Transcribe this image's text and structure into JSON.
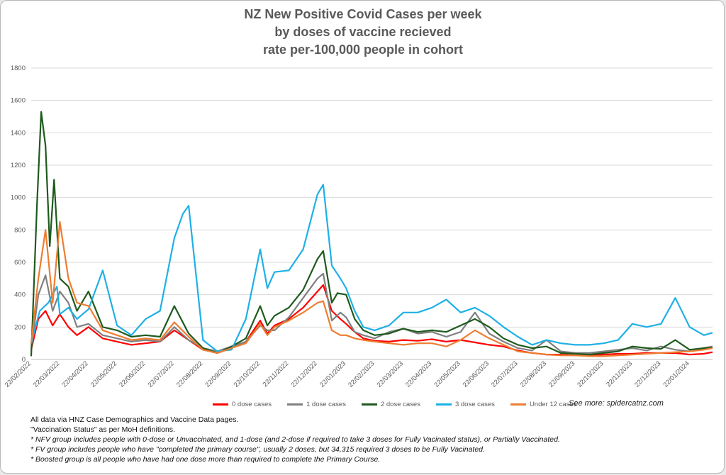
{
  "chart_data": {
    "type": "line",
    "title": [
      "NZ New Positive Covid Cases per week",
      "by doses of vaccine recieved",
      "rate per-100,000 people in cohort"
    ],
    "ylim": [
      0,
      1800
    ],
    "yticks": [
      "0",
      "200",
      "400",
      "600",
      "800",
      "1000",
      "1200",
      "1400",
      "1600",
      "1800"
    ],
    "x_tick_labels": [
      "22/02/2022",
      "22/03/2022",
      "22/04/2022",
      "22/05/2022",
      "22/06/2022",
      "22/07/2022",
      "22/08/2022",
      "22/09/2022",
      "22/10/2022",
      "22/11/2022",
      "22/12/2022",
      "22/01/2023",
      "22/02/2023",
      "22/03/2023",
      "22/04/2023",
      "22/05/2023",
      "22/06/2023",
      "22/07/2023",
      "22/08/2023",
      "22/09/2023",
      "22/10/2023",
      "22/11/2023",
      "22/12/2023",
      "22/01/2024"
    ],
    "x_range_months": [
      0,
      23.8
    ],
    "grid": true,
    "legend_position": "bottom",
    "series": [
      {
        "name": "0 dose cases",
        "color": "#ff0000",
        "points": [
          [
            0,
            60
          ],
          [
            0.25,
            250
          ],
          [
            0.5,
            300
          ],
          [
            0.75,
            210
          ],
          [
            1,
            280
          ],
          [
            1.3,
            200
          ],
          [
            1.6,
            150
          ],
          [
            2,
            200
          ],
          [
            2.5,
            130
          ],
          [
            3,
            110
          ],
          [
            3.5,
            90
          ],
          [
            4,
            100
          ],
          [
            4.5,
            110
          ],
          [
            5,
            180
          ],
          [
            5.5,
            120
          ],
          [
            6,
            60
          ],
          [
            6.5,
            40
          ],
          [
            7,
            70
          ],
          [
            7.5,
            110
          ],
          [
            8,
            240
          ],
          [
            8.25,
            160
          ],
          [
            8.5,
            210
          ],
          [
            9,
            250
          ],
          [
            9.5,
            320
          ],
          [
            10,
            420
          ],
          [
            10.2,
            460
          ],
          [
            10.5,
            300
          ],
          [
            10.8,
            250
          ],
          [
            11,
            220
          ],
          [
            11.3,
            170
          ],
          [
            11.6,
            130
          ],
          [
            12,
            115
          ],
          [
            12.5,
            110
          ],
          [
            13,
            120
          ],
          [
            13.5,
            115
          ],
          [
            14,
            125
          ],
          [
            14.5,
            110
          ],
          [
            15,
            120
          ],
          [
            15.5,
            105
          ],
          [
            16,
            90
          ],
          [
            16.5,
            80
          ],
          [
            17,
            55
          ],
          [
            17.5,
            40
          ],
          [
            18,
            30
          ],
          [
            18.5,
            30
          ],
          [
            19,
            25
          ],
          [
            19.5,
            25
          ],
          [
            20,
            30
          ],
          [
            20.5,
            35
          ],
          [
            21,
            35
          ],
          [
            21.5,
            40
          ],
          [
            22,
            40
          ],
          [
            22.5,
            40
          ],
          [
            23,
            30
          ],
          [
            23.5,
            35
          ],
          [
            23.8,
            45
          ]
        ]
      },
      {
        "name": "1 dose cases",
        "color": "#808080",
        "points": [
          [
            0,
            60
          ],
          [
            0.25,
            400
          ],
          [
            0.5,
            520
          ],
          [
            0.75,
            300
          ],
          [
            1,
            420
          ],
          [
            1.3,
            350
          ],
          [
            1.6,
            200
          ],
          [
            2,
            220
          ],
          [
            2.5,
            150
          ],
          [
            3,
            130
          ],
          [
            3.5,
            110
          ],
          [
            4,
            120
          ],
          [
            4.5,
            110
          ],
          [
            5,
            200
          ],
          [
            5.5,
            120
          ],
          [
            6,
            70
          ],
          [
            6.5,
            50
          ],
          [
            7,
            80
          ],
          [
            7.5,
            110
          ],
          [
            8,
            210
          ],
          [
            8.25,
            180
          ],
          [
            8.5,
            180
          ],
          [
            9,
            260
          ],
          [
            9.5,
            380
          ],
          [
            10,
            500
          ],
          [
            10.2,
            530
          ],
          [
            10.5,
            240
          ],
          [
            10.8,
            290
          ],
          [
            11,
            260
          ],
          [
            11.3,
            170
          ],
          [
            11.6,
            150
          ],
          [
            12,
            130
          ],
          [
            12.5,
            170
          ],
          [
            13,
            190
          ],
          [
            13.5,
            160
          ],
          [
            14,
            170
          ],
          [
            14.5,
            140
          ],
          [
            15,
            170
          ],
          [
            15.5,
            290
          ],
          [
            16,
            160
          ],
          [
            16.5,
            110
          ],
          [
            17,
            70
          ],
          [
            17.5,
            55
          ],
          [
            18,
            120
          ],
          [
            18.5,
            50
          ],
          [
            19,
            40
          ],
          [
            19.5,
            40
          ],
          [
            20,
            50
          ],
          [
            20.5,
            60
          ],
          [
            21,
            70
          ],
          [
            21.5,
            55
          ],
          [
            22,
            80
          ],
          [
            22.5,
            60
          ],
          [
            23,
            50
          ],
          [
            23.5,
            70
          ],
          [
            23.8,
            80
          ]
        ]
      },
      {
        "name": "2 dose cases",
        "color": "#1e5a1e",
        "points": [
          [
            0,
            20
          ],
          [
            0.2,
            950
          ],
          [
            0.35,
            1530
          ],
          [
            0.5,
            1320
          ],
          [
            0.65,
            700
          ],
          [
            0.8,
            1110
          ],
          [
            1,
            500
          ],
          [
            1.3,
            450
          ],
          [
            1.6,
            300
          ],
          [
            2,
            420
          ],
          [
            2.5,
            200
          ],
          [
            3,
            180
          ],
          [
            3.5,
            140
          ],
          [
            4,
            150
          ],
          [
            4.5,
            140
          ],
          [
            5,
            330
          ],
          [
            5.5,
            160
          ],
          [
            6,
            70
          ],
          [
            6.5,
            40
          ],
          [
            7,
            80
          ],
          [
            7.5,
            130
          ],
          [
            8,
            330
          ],
          [
            8.25,
            210
          ],
          [
            8.5,
            270
          ],
          [
            9,
            320
          ],
          [
            9.5,
            430
          ],
          [
            10,
            620
          ],
          [
            10.2,
            670
          ],
          [
            10.5,
            350
          ],
          [
            10.7,
            410
          ],
          [
            11,
            400
          ],
          [
            11.3,
            250
          ],
          [
            11.6,
            180
          ],
          [
            12,
            150
          ],
          [
            12.5,
            160
          ],
          [
            13,
            190
          ],
          [
            13.5,
            170
          ],
          [
            14,
            180
          ],
          [
            14.5,
            170
          ],
          [
            15,
            210
          ],
          [
            15.5,
            250
          ],
          [
            16,
            200
          ],
          [
            16.5,
            130
          ],
          [
            17,
            90
          ],
          [
            17.5,
            70
          ],
          [
            18,
            80
          ],
          [
            18.5,
            40
          ],
          [
            19,
            35
          ],
          [
            19.5,
            30
          ],
          [
            20,
            40
          ],
          [
            20.5,
            50
          ],
          [
            21,
            80
          ],
          [
            21.5,
            70
          ],
          [
            22,
            65
          ],
          [
            22.5,
            120
          ],
          [
            23,
            60
          ],
          [
            23.5,
            70
          ],
          [
            23.8,
            75
          ]
        ]
      },
      {
        "name": "3 dose cases",
        "color": "#1fb0e6",
        "points": [
          [
            0,
            100
          ],
          [
            0.3,
            300
          ],
          [
            0.6,
            350
          ],
          [
            0.9,
            450
          ],
          [
            1,
            280
          ],
          [
            1.3,
            320
          ],
          [
            1.6,
            250
          ],
          [
            2,
            310
          ],
          [
            2.5,
            550
          ],
          [
            3,
            210
          ],
          [
            3.5,
            150
          ],
          [
            4,
            250
          ],
          [
            4.5,
            300
          ],
          [
            5,
            750
          ],
          [
            5.3,
            900
          ],
          [
            5.5,
            950
          ],
          [
            6,
            120
          ],
          [
            6.5,
            50
          ],
          [
            7,
            60
          ],
          [
            7.5,
            250
          ],
          [
            8,
            680
          ],
          [
            8.25,
            440
          ],
          [
            8.5,
            540
          ],
          [
            9,
            550
          ],
          [
            9.5,
            680
          ],
          [
            10,
            1020
          ],
          [
            10.2,
            1080
          ],
          [
            10.5,
            580
          ],
          [
            10.8,
            500
          ],
          [
            11,
            440
          ],
          [
            11.3,
            300
          ],
          [
            11.6,
            200
          ],
          [
            12,
            180
          ],
          [
            12.5,
            210
          ],
          [
            13,
            290
          ],
          [
            13.5,
            290
          ],
          [
            14,
            320
          ],
          [
            14.5,
            370
          ],
          [
            15,
            290
          ],
          [
            15.5,
            320
          ],
          [
            16,
            270
          ],
          [
            16.5,
            200
          ],
          [
            17,
            140
          ],
          [
            17.5,
            90
          ],
          [
            18,
            120
          ],
          [
            18.5,
            100
          ],
          [
            19,
            90
          ],
          [
            19.5,
            90
          ],
          [
            20,
            100
          ],
          [
            20.5,
            120
          ],
          [
            21,
            220
          ],
          [
            21.5,
            200
          ],
          [
            22,
            220
          ],
          [
            22.5,
            380
          ],
          [
            23,
            200
          ],
          [
            23.5,
            150
          ],
          [
            23.8,
            165
          ]
        ]
      },
      {
        "name": "Under 12 cases",
        "color": "#ed7d31",
        "points": [
          [
            0,
            100
          ],
          [
            0.25,
            500
          ],
          [
            0.5,
            800
          ],
          [
            0.75,
            350
          ],
          [
            1,
            850
          ],
          [
            1.3,
            500
          ],
          [
            1.6,
            350
          ],
          [
            2,
            330
          ],
          [
            2.5,
            180
          ],
          [
            3,
            150
          ],
          [
            3.5,
            120
          ],
          [
            4,
            130
          ],
          [
            4.5,
            120
          ],
          [
            5,
            230
          ],
          [
            5.5,
            140
          ],
          [
            6,
            60
          ],
          [
            6.5,
            40
          ],
          [
            7,
            70
          ],
          [
            7.5,
            100
          ],
          [
            8,
            220
          ],
          [
            8.25,
            150
          ],
          [
            8.5,
            200
          ],
          [
            9,
            240
          ],
          [
            9.5,
            290
          ],
          [
            10,
            350
          ],
          [
            10.2,
            360
          ],
          [
            10.5,
            180
          ],
          [
            10.8,
            150
          ],
          [
            11,
            150
          ],
          [
            11.3,
            130
          ],
          [
            11.6,
            120
          ],
          [
            12,
            110
          ],
          [
            12.5,
            100
          ],
          [
            13,
            90
          ],
          [
            13.5,
            100
          ],
          [
            14,
            100
          ],
          [
            14.5,
            80
          ],
          [
            15,
            120
          ],
          [
            15.5,
            180
          ],
          [
            16,
            130
          ],
          [
            16.5,
            90
          ],
          [
            17,
            50
          ],
          [
            17.5,
            40
          ],
          [
            18,
            30
          ],
          [
            18.5,
            25
          ],
          [
            19,
            25
          ],
          [
            19.5,
            20
          ],
          [
            20,
            20
          ],
          [
            20.5,
            25
          ],
          [
            21,
            30
          ],
          [
            21.5,
            35
          ],
          [
            22,
            40
          ],
          [
            22.5,
            45
          ],
          [
            23,
            50
          ],
          [
            23.5,
            60
          ],
          [
            23.8,
            70
          ]
        ]
      }
    ]
  },
  "legend": [
    {
      "label": "0 dose cases",
      "color": "#ff0000"
    },
    {
      "label": "1 dose cases",
      "color": "#808080"
    },
    {
      "label": "2 dose cases",
      "color": "#1e5a1e"
    },
    {
      "label": "3 dose cases",
      "color": "#1fb0e6"
    },
    {
      "label": "Under 12 cases",
      "color": "#ed7d31"
    }
  ],
  "see_more": "See more: spidercatnz.com",
  "notes": {
    "line1": "All data via HNZ Case Demographics and Vaccine Data pages.",
    "line2": "\"Vaccination Status\" as per MoH definitions.",
    "line3": "* NFV group includes people with 0-dose or Unvaccinated, and 1-dose (and 2-dose if required to take 3 doses for Fully Vacinated status), or Partially Vaccinated.",
    "line4": "* FV group includes people who have \"completed the primary course\", usually 2 doses, but 34,315 required 3 doses to be Fully Vacinated.",
    "line5": "* Boosted group is all people who have had one dose more than required to complete the Primary Course."
  }
}
